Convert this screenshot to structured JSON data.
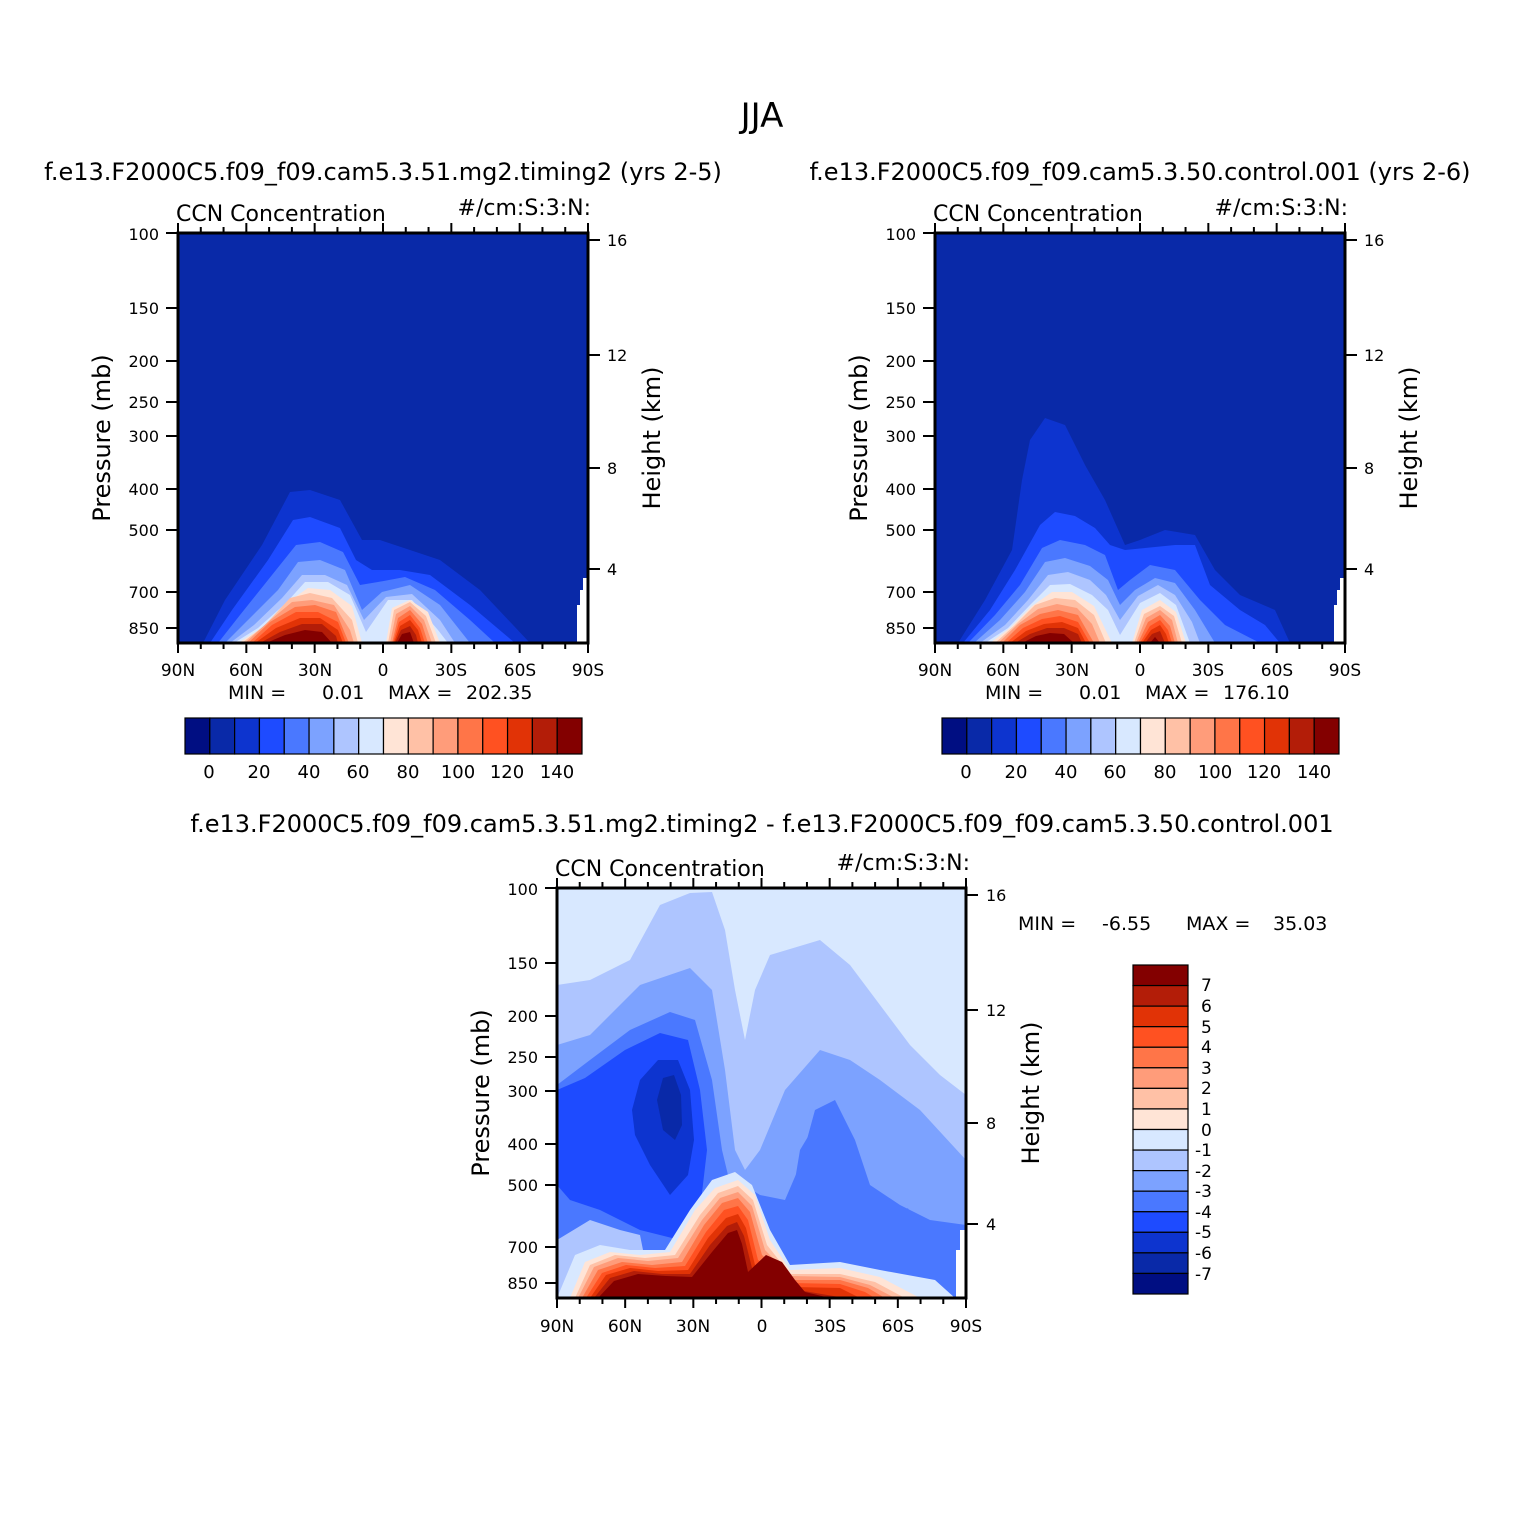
{
  "title": "JJA",
  "colors": {
    "abs_levels": [
      "#000e82",
      "#0929a8",
      "#0d34cf",
      "#1e4bff",
      "#4a78ff",
      "#7ca2ff",
      "#aec5ff",
      "#d8e8ff",
      "#ffe4d6",
      "#ffc1a6",
      "#ff9c7a",
      "#ff7548",
      "#ff5121",
      "#e13306",
      "#b31d08",
      "#830000"
    ],
    "diff_levels": [
      "#000e82",
      "#0929a8",
      "#0d34cf",
      "#1e4bff",
      "#4a78ff",
      "#7ca2ff",
      "#aec5ff",
      "#d8e8ff",
      "#ffe4d6",
      "#ffc1a6",
      "#ff9c7a",
      "#ff7548",
      "#ff5121",
      "#e13306",
      "#b31d08",
      "#830000"
    ]
  },
  "chart_data": [
    {
      "id": "panel_a",
      "type": "heatmap",
      "case_title": "f.e13.F2000C5.f09_f09.cam5.3.51.mg2.timing2 (yrs 2-5)",
      "subtitle_left": "CCN Concentration",
      "subtitle_right": "#/cm:S:3:N:",
      "xlabel": "",
      "ylabel": "Pressure (mb)",
      "ylabel_right": "Height (km)",
      "x_ticks": [
        "90N",
        "60N",
        "30N",
        "0",
        "30S",
        "60S",
        "90S"
      ],
      "y_ticks": [
        "100",
        "150",
        "200",
        "250",
        "300",
        "400",
        "500",
        "700",
        "850"
      ],
      "y_right_ticks": [
        "16",
        "12",
        "8",
        "4"
      ],
      "stats": {
        "min_label": "MIN =",
        "min": "0.01",
        "max_label": "MAX =",
        "max": "202.35"
      },
      "colorbar_labels": [
        "0",
        "20",
        "40",
        "60",
        "80",
        "100",
        "120",
        "140"
      ],
      "xlim": [
        90,
        -90
      ],
      "ylim": [
        1000,
        100
      ],
      "dominant_level": 1,
      "features": [
        {
          "lat": 37,
          "top_mb": 400,
          "peak": 202.35
        },
        {
          "lat": -10,
          "top_mb": 470,
          "peak": 150
        }
      ]
    },
    {
      "id": "panel_b",
      "type": "heatmap",
      "case_title": "f.e13.F2000C5.f09_f09.cam5.3.50.control.001 (yrs 2-6)",
      "subtitle_left": "CCN Concentration",
      "subtitle_right": "#/cm:S:3:N:",
      "xlabel": "",
      "ylabel": "Pressure (mb)",
      "ylabel_right": "Height (km)",
      "x_ticks": [
        "90N",
        "60N",
        "30N",
        "0",
        "30S",
        "60S",
        "90S"
      ],
      "y_ticks": [
        "100",
        "150",
        "200",
        "250",
        "300",
        "400",
        "500",
        "700",
        "850"
      ],
      "y_right_ticks": [
        "16",
        "12",
        "8",
        "4"
      ],
      "stats": {
        "min_label": "MIN =",
        "min": "0.01",
        "max_label": "MAX =",
        "max": "176.10"
      },
      "colorbar_labels": [
        "0",
        "20",
        "40",
        "60",
        "80",
        "100",
        "120",
        "140"
      ],
      "xlim": [
        90,
        -90
      ],
      "ylim": [
        1000,
        100
      ],
      "dominant_level": 1,
      "features": [
        {
          "lat": 40,
          "top_mb": 270,
          "peak": 176.1
        },
        {
          "lat": -10,
          "top_mb": 480,
          "peak": 140
        }
      ]
    },
    {
      "id": "panel_diff",
      "type": "heatmap",
      "case_title": "f.e13.F2000C5.f09_f09.cam5.3.51.mg2.timing2 - f.e13.F2000C5.f09_f09.cam5.3.50.control.001",
      "subtitle_left": "CCN Concentration",
      "subtitle_right": "#/cm:S:3:N:",
      "xlabel": "",
      "ylabel": "Pressure (mb)",
      "ylabel_right": "Height (km)",
      "x_ticks": [
        "90N",
        "60N",
        "30N",
        "0",
        "30S",
        "60S",
        "90S"
      ],
      "y_ticks": [
        "100",
        "150",
        "200",
        "250",
        "300",
        "400",
        "500",
        "700",
        "850"
      ],
      "y_right_ticks": [
        "16",
        "12",
        "8",
        "4"
      ],
      "stats": {
        "min_label": "MIN =",
        "min": "-6.55",
        "max_label": "MAX =",
        "max": "35.03"
      },
      "colorbar_labels": [
        "7",
        "6",
        "5",
        "4",
        "3",
        "2",
        "1",
        "0",
        "-1",
        "-2",
        "-3",
        "-4",
        "-5",
        "-6",
        "-7"
      ],
      "xlim": [
        90,
        -90
      ],
      "ylim": [
        1000,
        100
      ],
      "dominant_level": 7,
      "features": [
        {
          "lat": 40,
          "p_mb": 300,
          "value": -6.55
        },
        {
          "lat": -28,
          "p_mb": 450,
          "value": -4
        },
        {
          "lat": 15,
          "p_mb": 850,
          "value": 35.03
        }
      ]
    }
  ]
}
